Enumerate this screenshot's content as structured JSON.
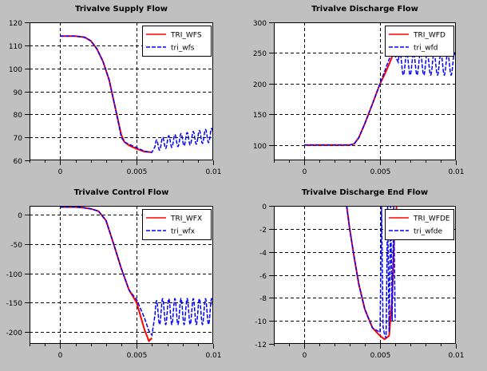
{
  "window": {
    "background": "#c0c0c0",
    "axes_background": "#ffffff"
  },
  "colors": {
    "ref": "#ff0000",
    "sim": "#0000ff",
    "grid": "#000000"
  },
  "chart_data": [
    {
      "type": "line",
      "title": "Trivalve Supply Flow",
      "xlim": [
        -0.002,
        0.01
      ],
      "ylim": [
        60,
        120
      ],
      "xticks": [
        0,
        0.005,
        0.01
      ],
      "xtick_labels": [
        "0",
        "0.005",
        "0.01"
      ],
      "yticks": [
        60,
        70,
        80,
        90,
        100,
        110,
        120
      ],
      "ytick_labels": [
        "60",
        "70",
        "80",
        "90",
        "100",
        "110",
        "120"
      ],
      "grid": true,
      "legend_position": "top-right",
      "series": [
        {
          "name": "TRI_WFS",
          "style": "solid",
          "color_key": "ref",
          "x": [
            0,
            0.001,
            0.0016,
            0.002,
            0.0024,
            0.0028,
            0.0032,
            0.0036,
            0.004,
            0.0042,
            0.0045,
            0.005,
            0.0055,
            0.006
          ],
          "y": [
            114,
            114,
            113.5,
            112,
            108.5,
            103,
            95,
            83,
            71,
            68,
            66.5,
            65,
            63.8,
            63.5
          ]
        },
        {
          "name": "tri_wfs",
          "style": "dashed",
          "color_key": "sim",
          "x": [
            0,
            0.001,
            0.0016,
            0.002,
            0.0024,
            0.0028,
            0.0032,
            0.0036,
            0.004,
            0.0042,
            0.0045,
            0.005,
            0.0055,
            0.006,
            0.0062,
            0.0065,
            0.007,
            0.0075,
            0.008,
            0.0085,
            0.009,
            0.0095,
            0.01
          ],
          "y": [
            114,
            114,
            113.5,
            112,
            108.5,
            103,
            95,
            83,
            70,
            68,
            67,
            65.5,
            64,
            63.5,
            66,
            67,
            68,
            68.5,
            69,
            69.5,
            70,
            70.5,
            71
          ],
          "oscillation": {
            "start": 0.0062,
            "end": 0.01,
            "period": 0.0004,
            "amp_start": 2.5,
            "amp_end": 3
          }
        }
      ]
    },
    {
      "type": "line",
      "title": "Trivalve Discharge Flow",
      "xlim": [
        -0.002,
        0.01
      ],
      "ylim": [
        75,
        300
      ],
      "xticks": [
        0,
        0.005,
        0.01
      ],
      "xtick_labels": [
        "0",
        "0.005",
        "0.01"
      ],
      "yticks": [
        100,
        150,
        200,
        250,
        300
      ],
      "ytick_labels": [
        "100",
        "150",
        "200",
        "250",
        "300"
      ],
      "grid": true,
      "legend_position": "top-right",
      "series": [
        {
          "name": "TRI_WFD",
          "style": "solid",
          "color_key": "ref",
          "x": [
            0,
            0.001,
            0.002,
            0.0025,
            0.003,
            0.0033,
            0.0036,
            0.004,
            0.0045,
            0.005,
            0.0053,
            0.0056,
            0.0059
          ],
          "y": [
            100,
            100,
            100,
            100,
            100,
            102,
            112,
            135,
            167,
            200,
            215,
            232,
            250
          ]
        },
        {
          "name": "tri_wfd",
          "style": "dashed",
          "color_key": "sim",
          "x": [
            0,
            0.001,
            0.002,
            0.0025,
            0.003,
            0.0033,
            0.0036,
            0.004,
            0.0045,
            0.005,
            0.0053,
            0.0056,
            0.0059,
            0.0062,
            0.0065,
            0.007,
            0.0075,
            0.008,
            0.0085,
            0.009,
            0.0095,
            0.01
          ],
          "y": [
            100,
            100,
            100,
            100,
            100,
            102,
            112,
            135,
            167,
            200,
            220,
            240,
            250,
            235,
            232,
            232,
            232,
            232,
            232,
            232,
            232,
            232
          ],
          "oscillation": {
            "start": 0.0062,
            "end": 0.01,
            "period": 0.00045,
            "amp_start": 18,
            "amp_end": 18
          }
        }
      ]
    },
    {
      "type": "line",
      "title": "Trivalve Control Flow",
      "xlim": [
        -0.002,
        0.01
      ],
      "ylim": [
        -220,
        15
      ],
      "xticks": [
        0,
        0.005,
        0.01
      ],
      "xtick_labels": [
        "0",
        "0.005",
        "0.01"
      ],
      "yticks": [
        -200,
        -150,
        -100,
        -50,
        0
      ],
      "ytick_labels": [
        "-200",
        "-150",
        "-100",
        "-50",
        "0"
      ],
      "grid": true,
      "legend_position": "top-right",
      "series": [
        {
          "name": "TRI_WFX",
          "style": "solid",
          "color_key": "ref",
          "x": [
            0,
            0.001,
            0.0015,
            0.002,
            0.0025,
            0.003,
            0.0035,
            0.004,
            0.0045,
            0.005,
            0.0055,
            0.0058,
            0.006
          ],
          "y": [
            13,
            13,
            12,
            10,
            6,
            -10,
            -50,
            -92,
            -128,
            -150,
            -195,
            -215,
            -210
          ]
        },
        {
          "name": "tri_wfx",
          "style": "dashed",
          "color_key": "sim",
          "x": [
            0,
            0.001,
            0.0015,
            0.002,
            0.0025,
            0.003,
            0.0035,
            0.004,
            0.0045,
            0.005,
            0.0055,
            0.0058,
            0.006,
            0.0062,
            0.0065,
            0.007,
            0.0075,
            0.008,
            0.0085,
            0.009,
            0.0095,
            0.01
          ],
          "y": [
            13,
            13,
            12,
            10,
            6,
            -10,
            -50,
            -92,
            -128,
            -145,
            -175,
            -198,
            -205,
            -170,
            -165,
            -165,
            -165,
            -165,
            -165,
            -165,
            -165,
            -165
          ],
          "oscillation": {
            "start": 0.0062,
            "end": 0.01,
            "period": 0.0004,
            "amp_start": 22,
            "amp_end": 22
          }
        }
      ]
    },
    {
      "type": "line",
      "title": "Trivalve Discharge End Flow",
      "xlim": [
        -0.002,
        0.01
      ],
      "ylim": [
        -12,
        0
      ],
      "xticks": [
        0,
        0.005,
        0.01
      ],
      "xtick_labels": [
        "0",
        "0.005",
        "0.01"
      ],
      "yticks": [
        -12,
        -10,
        -8,
        -6,
        -4,
        -2,
        0
      ],
      "ytick_labels": [
        "-12",
        "-10",
        "-8",
        "-6",
        "-4",
        "-2",
        "0"
      ],
      "grid": true,
      "legend_position": "top-right",
      "series": [
        {
          "name": "TRI_WFDE",
          "style": "solid",
          "color_key": "ref",
          "x": [
            0.0028,
            0.003,
            0.0033,
            0.0036,
            0.004,
            0.0045,
            0.005,
            0.0053,
            0.0056,
            0.0058,
            0.0059,
            0.006,
            0.0061
          ],
          "y": [
            0,
            -2,
            -4.5,
            -6.8,
            -9,
            -10.6,
            -11.3,
            -11.6,
            -11.3,
            -8,
            -4,
            -1,
            0
          ]
        },
        {
          "name": "tri_wfde",
          "style": "dashed",
          "color_key": "sim",
          "x": [
            0.0028,
            0.003,
            0.0033,
            0.0036,
            0.004,
            0.0045,
            0.005,
            0.0051,
            0.0052,
            0.0053,
            0.0054,
            0.0055,
            0.0056,
            0.0057,
            0.0058,
            0.0059,
            0.006
          ],
          "y": [
            0,
            -2,
            -4.5,
            -6.8,
            -9,
            -10.6,
            -11,
            0,
            -10.5,
            -11.2,
            -11.5,
            0,
            -11,
            0,
            -10,
            0,
            -10
          ]
        }
      ]
    }
  ]
}
